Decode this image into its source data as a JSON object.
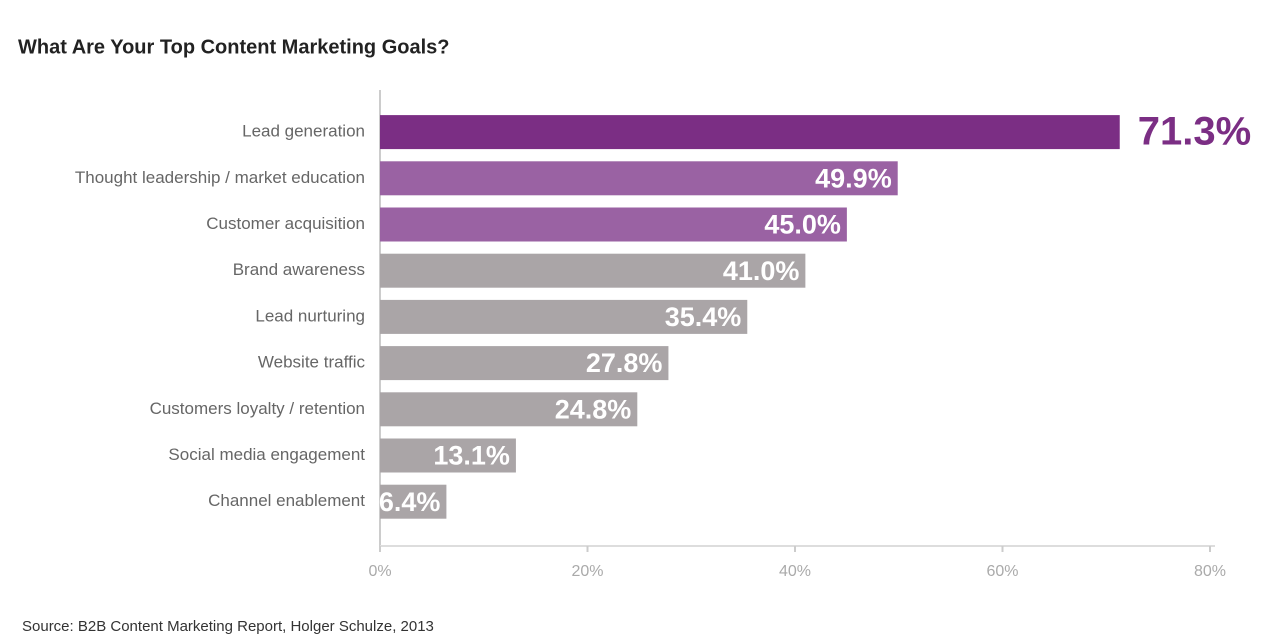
{
  "chart_data": {
    "type": "barh",
    "title": "What Are Your Top Content Marketing Goals?",
    "source": "Source: B2B Content Marketing Report, Holger Schulze, 2013",
    "categories": [
      "Lead generation",
      "Thought leadership /  market education",
      "Customer acquisition",
      "Brand awareness",
      "Lead nurturing",
      "Website traffic",
      "Customers loyalty / retention",
      "Social media engagement",
      "Channel enablement"
    ],
    "values": [
      71.3,
      49.9,
      45.0,
      41.0,
      35.4,
      27.8,
      24.8,
      13.1,
      6.4
    ],
    "value_labels": [
      "71.3%",
      "49.9%",
      "45.0%",
      "41.0%",
      "35.4%",
      "27.8%",
      "24.8%",
      "13.1%",
      "6.4%"
    ],
    "colors": [
      "#7b2e84",
      "#9a62a3",
      "#9a62a3",
      "#aaa5a7",
      "#aaa5a7",
      "#aaa5a7",
      "#aaa5a7",
      "#aaa5a7",
      "#aaa5a7"
    ],
    "xlim": [
      0,
      80
    ],
    "xticks": [
      {
        "value": 0,
        "label": "0%"
      },
      {
        "value": 20,
        "label": "20%"
      },
      {
        "value": 40,
        "label": "40%"
      },
      {
        "value": 60,
        "label": "60%"
      },
      {
        "value": 80,
        "label": "80%"
      }
    ]
  }
}
